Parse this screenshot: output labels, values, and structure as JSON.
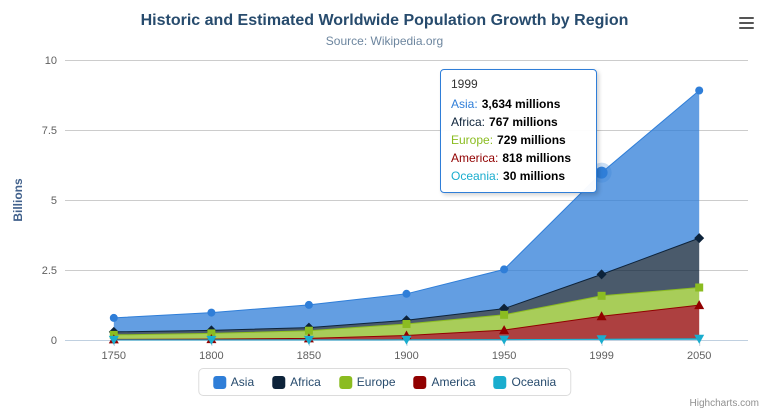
{
  "chart": {
    "credits": "Highcharts.com",
    "menu_icon": "hamburger-menu-icon"
  },
  "chart_data": {
    "type": "area",
    "stacked": true,
    "title": "Historic and Estimated Worldwide Population Growth by Region",
    "subtitle": "Source: Wikipedia.org",
    "categories": [
      "1750",
      "1800",
      "1850",
      "1900",
      "1950",
      "1999",
      "2050"
    ],
    "unit": "millions",
    "ylabel": "Billions",
    "ylim_billions": [
      0,
      10
    ],
    "yticks_billions": [
      0,
      2.5,
      5,
      7.5,
      10
    ],
    "grid": true,
    "legend_position": "bottom",
    "series": [
      {
        "name": "Asia",
        "color": "#2f7ed8",
        "marker": "circle",
        "values": [
          502,
          635,
          809,
          947,
          1402,
          3634,
          5268
        ]
      },
      {
        "name": "Africa",
        "color": "#0d233a",
        "marker": "diamond",
        "values": [
          106,
          107,
          111,
          133,
          221,
          767,
          1766
        ]
      },
      {
        "name": "Europe",
        "color": "#8bbc21",
        "marker": "square",
        "values": [
          163,
          203,
          276,
          408,
          547,
          729,
          628
        ]
      },
      {
        "name": "America",
        "color": "#910000",
        "marker": "triangle",
        "values": [
          18,
          31,
          54,
          156,
          339,
          818,
          1201
        ]
      },
      {
        "name": "Oceania",
        "color": "#1aadce",
        "marker": "triangle-down",
        "values": [
          2,
          2,
          2,
          6,
          13,
          30,
          46
        ]
      }
    ],
    "hover": {
      "series_index": 0,
      "category_index": 5
    }
  },
  "tooltip": {
    "header": "1999",
    "rows": [
      {
        "name": "Asia:",
        "value": "3,634 millions"
      },
      {
        "name": "Africa:",
        "value": "767 millions"
      },
      {
        "name": "Europe:",
        "value": "729 millions"
      },
      {
        "name": "America:",
        "value": "818 millions"
      },
      {
        "name": "Oceania:",
        "value": "30 millions"
      }
    ]
  }
}
